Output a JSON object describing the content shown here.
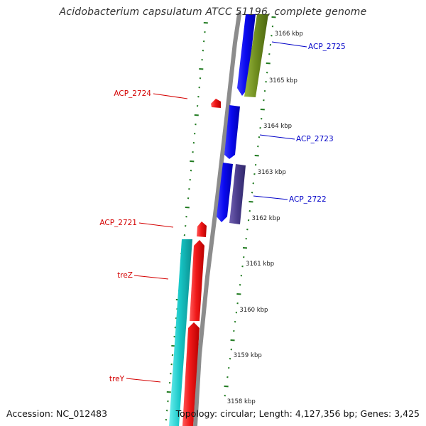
{
  "title": "Acidobacterium capsulatum ATCC 51196, complete genome",
  "accession_text": "Accession: NC_012483",
  "topology_text": "Topology: circular; Length: 4,127,356 bp; Genes: 3,425",
  "colors": {
    "backbone": "#8c8c8c",
    "tick_green": "#1f7a1f",
    "label_red": "#d40000",
    "label_blue": "#0000c8",
    "gene_blue": "#0a0af0",
    "gene_red": "#f01818",
    "gene_cyan": "#18c8c8",
    "gene_olive": "#6e8c1e",
    "gene_navy": "#4a3c8c"
  },
  "scale_labels": [
    "3166 kbp",
    "3165 kbp",
    "3164 kbp",
    "3163 kbp",
    "3162 kbp",
    "3161 kbp",
    "3160 kbp",
    "3159 kbp",
    "3158 kbp"
  ],
  "gene_labels_left": [
    "ACP_2724",
    "ACP_2721",
    "treZ",
    "treY"
  ],
  "gene_labels_right": [
    "ACP_2725",
    "ACP_2723",
    "ACP_2722"
  ]
}
